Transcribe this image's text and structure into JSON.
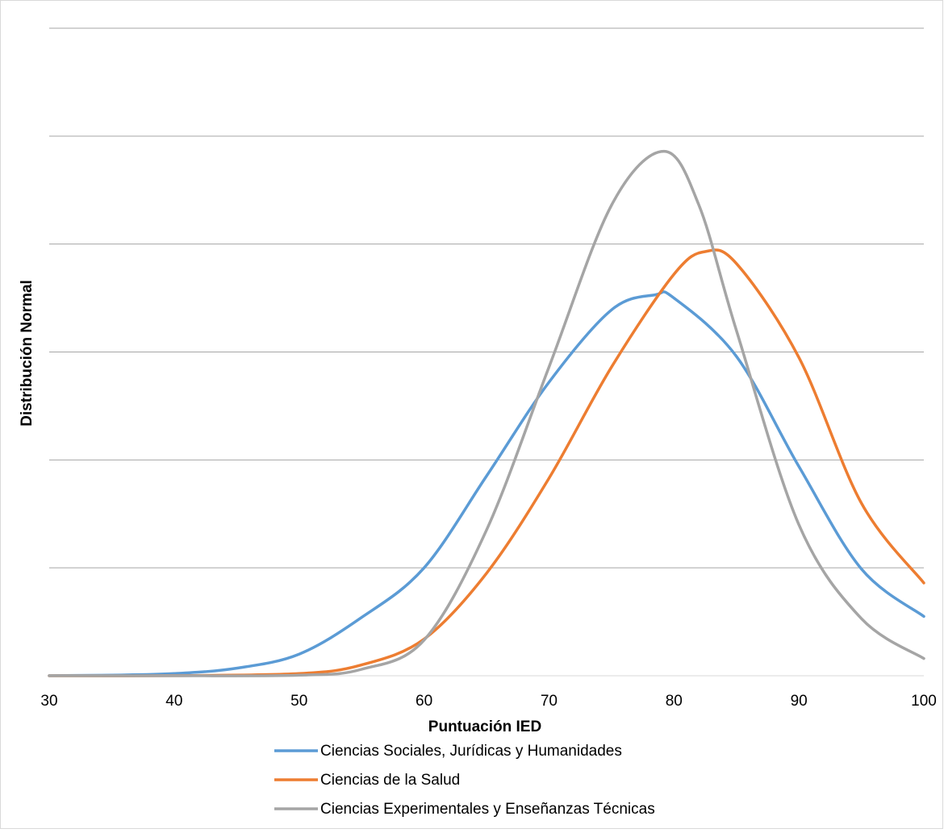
{
  "chart_data": {
    "type": "line",
    "title": "",
    "xlabel": "Puntuación IED",
    "ylabel": "Distribución Normal",
    "xlim": [
      30,
      100
    ],
    "ylim": [
      0,
      6
    ],
    "x_ticks": [
      30,
      40,
      50,
      60,
      70,
      80,
      90,
      100
    ],
    "x_tick_labels": [
      "30",
      "40",
      "50",
      "60",
      "70",
      "80",
      "90",
      "100"
    ],
    "y_tick_labels_shown": false,
    "grid": "horizontal",
    "legend_position": "bottom",
    "series": [
      {
        "name": "Ciencias Sociales, Jurídicas y Humanidades",
        "color": "#5B9BD5",
        "x": [
          30,
          35,
          40,
          45,
          50,
          55,
          60,
          65,
          70,
          75,
          78.5,
          80,
          85,
          90,
          95,
          100
        ],
        "y": [
          0.001,
          0.006,
          0.02,
          0.07,
          0.2,
          0.54,
          1.0,
          1.85,
          2.72,
          3.39,
          3.53,
          3.5,
          2.96,
          1.94,
          0.99,
          0.55
        ]
      },
      {
        "name": "Ciencias de la Salud",
        "color": "#ED7D31",
        "x": [
          30,
          40,
          50,
          55,
          60,
          65,
          70,
          75,
          80,
          82.5,
          85,
          90,
          95,
          100
        ],
        "y": [
          0.0,
          0.001,
          0.02,
          0.1,
          0.34,
          0.95,
          1.83,
          2.86,
          3.72,
          3.93,
          3.82,
          2.95,
          1.6,
          0.86
        ]
      },
      {
        "name": "Ciencias Experimentales y Enseñanzas Técnicas",
        "color": "#A5A5A5",
        "x": [
          30,
          40,
          50,
          55,
          60,
          65,
          70,
          75,
          79.2,
          82,
          85,
          90,
          95,
          100
        ],
        "y": [
          0.0,
          0.0,
          0.005,
          0.06,
          0.33,
          1.35,
          2.86,
          4.36,
          4.86,
          4.36,
          3.2,
          1.4,
          0.53,
          0.16
        ]
      }
    ]
  }
}
